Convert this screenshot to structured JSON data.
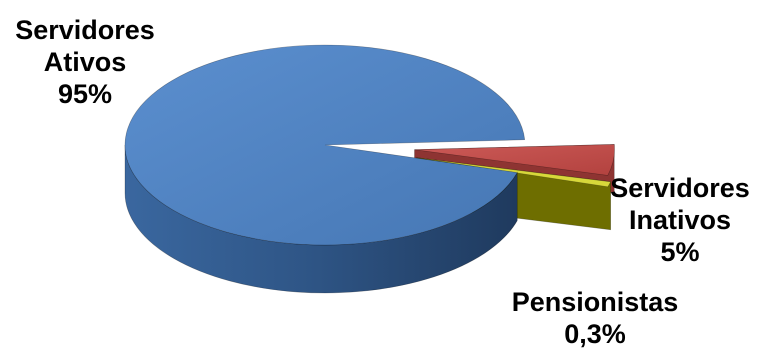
{
  "chart_data": {
    "type": "pie",
    "style": "3d-exploded",
    "title": "",
    "slices": [
      {
        "label_line1": "Servidores",
        "label_line2": "Ativos",
        "value": 95,
        "value_label": "95%",
        "color": "#4F81BD"
      },
      {
        "label_line1": "Servidores",
        "label_line2": "Inativos",
        "value": 5,
        "value_label": "5%",
        "color": "#C0504D"
      },
      {
        "label_line1": "Pensionistas",
        "label_line2": "",
        "value": 0.3,
        "value_label": "0,3%",
        "color": "#9BBB59"
      }
    ],
    "legend": "none",
    "data_labels": "outside"
  }
}
